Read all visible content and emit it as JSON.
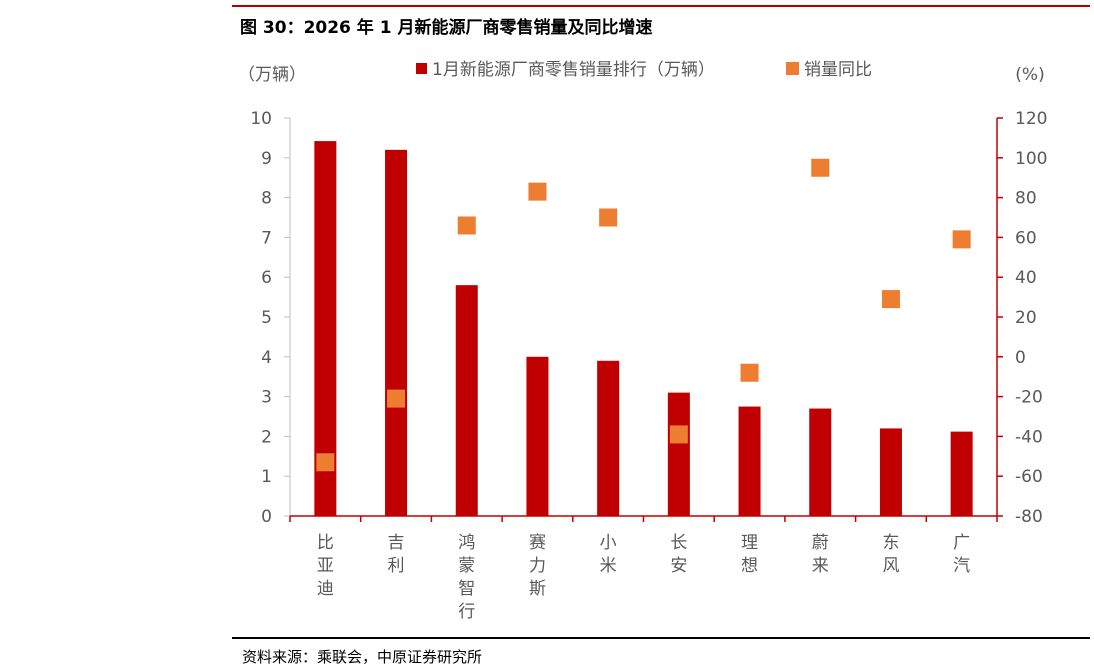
{
  "figure": {
    "title": "图 30：2026 年 1 月新能源厂商零售销量及同比增速",
    "source": "资料来源：乘联会，中原证券研究所"
  },
  "colors": {
    "bar": "#c00000",
    "marker": "#ed7d31",
    "axis_right": "#c00000",
    "axis_left": "#bfbfbf",
    "rule_top": "#b30000"
  },
  "chart_data": {
    "type": "bar",
    "categories": [
      "比亚迪",
      "吉利",
      "鸿蒙智行",
      "赛力斯",
      "小米",
      "长安",
      "理想",
      "蔚来",
      "东风",
      "广汽"
    ],
    "series": [
      {
        "name": "1月新能源厂商零售销量排行（万辆）",
        "type": "bar",
        "axis": "left",
        "values": [
          9.42,
          9.2,
          5.8,
          4.0,
          3.9,
          3.1,
          2.75,
          2.7,
          2.2,
          2.12
        ]
      },
      {
        "name": "销量同比",
        "type": "scatter",
        "axis": "right",
        "values": [
          -53,
          -21,
          66,
          83,
          70,
          -39,
          -8,
          95,
          29,
          59
        ]
      }
    ],
    "ylabel": "（万辆）",
    "y2label": "(%)",
    "ylim": [
      0,
      10
    ],
    "y2lim": [
      -80,
      120
    ],
    "yticks": [
      "0",
      "1",
      "2",
      "3",
      "4",
      "5",
      "6",
      "7",
      "8",
      "9",
      "10"
    ],
    "y2ticks": [
      "-80",
      "-60",
      "-40",
      "-20",
      "0",
      "20",
      "40",
      "60",
      "80",
      "100",
      "120"
    ],
    "grid": false,
    "legend_position": "top-center"
  }
}
